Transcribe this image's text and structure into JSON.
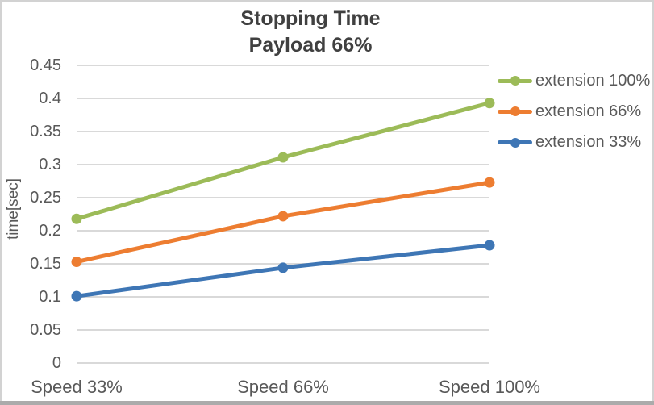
{
  "window": {
    "background": "#FFFFFF",
    "border_color": "#D2D2D2",
    "bottom_bar_color": "#ABABAB"
  },
  "chart_data": {
    "type": "line",
    "title": "Stopping Time",
    "subtitle": "Payload 66%",
    "ylabel": "time[sec]",
    "categories": [
      "Speed 33%",
      "Speed 66%",
      "Speed 100%"
    ],
    "series": [
      {
        "name": "extension 100%",
        "color": "#9CBB58",
        "values": [
          0.218,
          0.311,
          0.393
        ]
      },
      {
        "name": "extension 66%",
        "color": "#ED7D31",
        "values": [
          0.153,
          0.222,
          0.273
        ]
      },
      {
        "name": "extension 33%",
        "color": "#3E76B5",
        "values": [
          0.101,
          0.144,
          0.178
        ]
      }
    ],
    "ylim": [
      0,
      0.45
    ],
    "ytick_interval": 0.05,
    "ytick_labels": [
      "0",
      "0.05",
      "0.1",
      "0.15",
      "0.2",
      "0.25",
      "0.3",
      "0.35",
      "0.4",
      "0.45"
    ],
    "grid": true,
    "marker": "circle",
    "legend_position": "right",
    "colors": {
      "gridline": "#D9D9D9",
      "axis_text": "#595959",
      "title_text": "#404040"
    }
  }
}
